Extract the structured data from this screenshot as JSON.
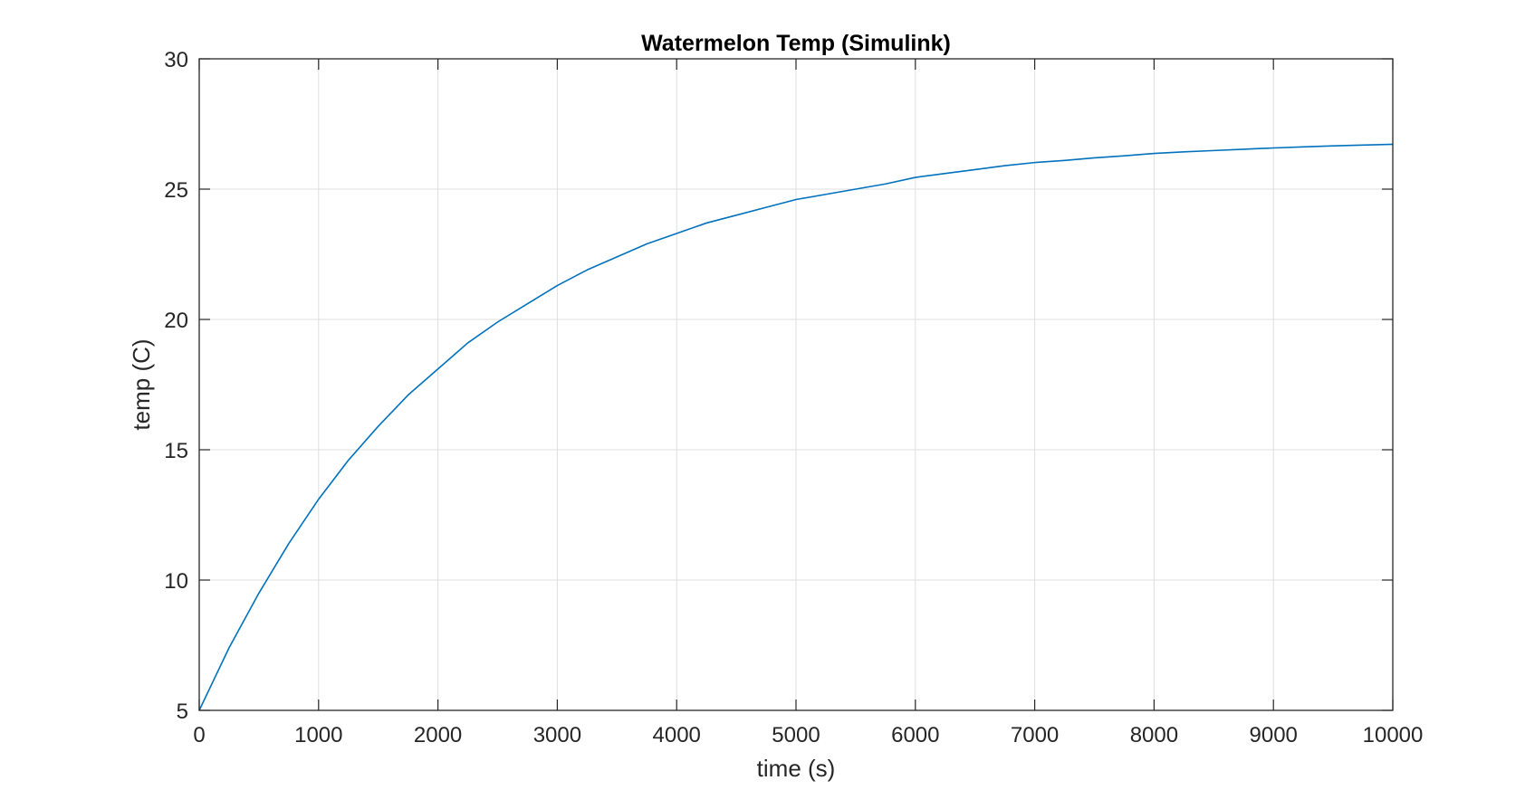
{
  "chart_data": {
    "type": "line",
    "title": "Watermelon Temp (Simulink)",
    "xlabel": "time (s)",
    "ylabel": "temp (C)",
    "xlim": [
      0,
      10000
    ],
    "ylim": [
      5,
      30
    ],
    "xticks": [
      0,
      1000,
      2000,
      3000,
      4000,
      5000,
      6000,
      7000,
      8000,
      9000,
      10000
    ],
    "yticks": [
      5,
      10,
      15,
      20,
      25,
      30
    ],
    "xtick_labels": [
      "0",
      "1000",
      "2000",
      "3000",
      "4000",
      "5000",
      "6000",
      "7000",
      "8000",
      "9000",
      "10000"
    ],
    "ytick_labels": [
      "5",
      "10",
      "15",
      "20",
      "25",
      "30"
    ],
    "grid": true,
    "legend": "none",
    "colors": {
      "line": "#0072BD",
      "grid": "#dfdfdf",
      "axes": "#262626"
    },
    "series": [
      {
        "x": [
          0,
          250,
          500,
          750,
          1000,
          1250,
          1500,
          1750,
          2000,
          2250,
          2500,
          2750,
          3000,
          3250,
          3500,
          3750,
          4000,
          4250,
          4500,
          4750,
          5000,
          5250,
          5500,
          5750,
          6000,
          6250,
          6500,
          6750,
          7000,
          7250,
          7500,
          7750,
          8000,
          8250,
          8500,
          8750,
          9000,
          9250,
          9500,
          9750,
          10000
        ],
        "y": [
          5.0,
          7.4,
          9.5,
          11.4,
          13.1,
          14.6,
          15.9,
          17.1,
          18.1,
          19.1,
          19.9,
          20.6,
          21.3,
          21.9,
          22.4,
          22.9,
          23.3,
          23.7,
          24.0,
          24.3,
          24.6,
          24.8,
          25.0,
          25.2,
          25.45,
          25.6,
          25.75,
          25.9,
          26.02,
          26.1,
          26.2,
          26.28,
          26.37,
          26.43,
          26.48,
          26.53,
          26.58,
          26.62,
          26.66,
          26.69,
          26.72
        ]
      }
    ]
  }
}
